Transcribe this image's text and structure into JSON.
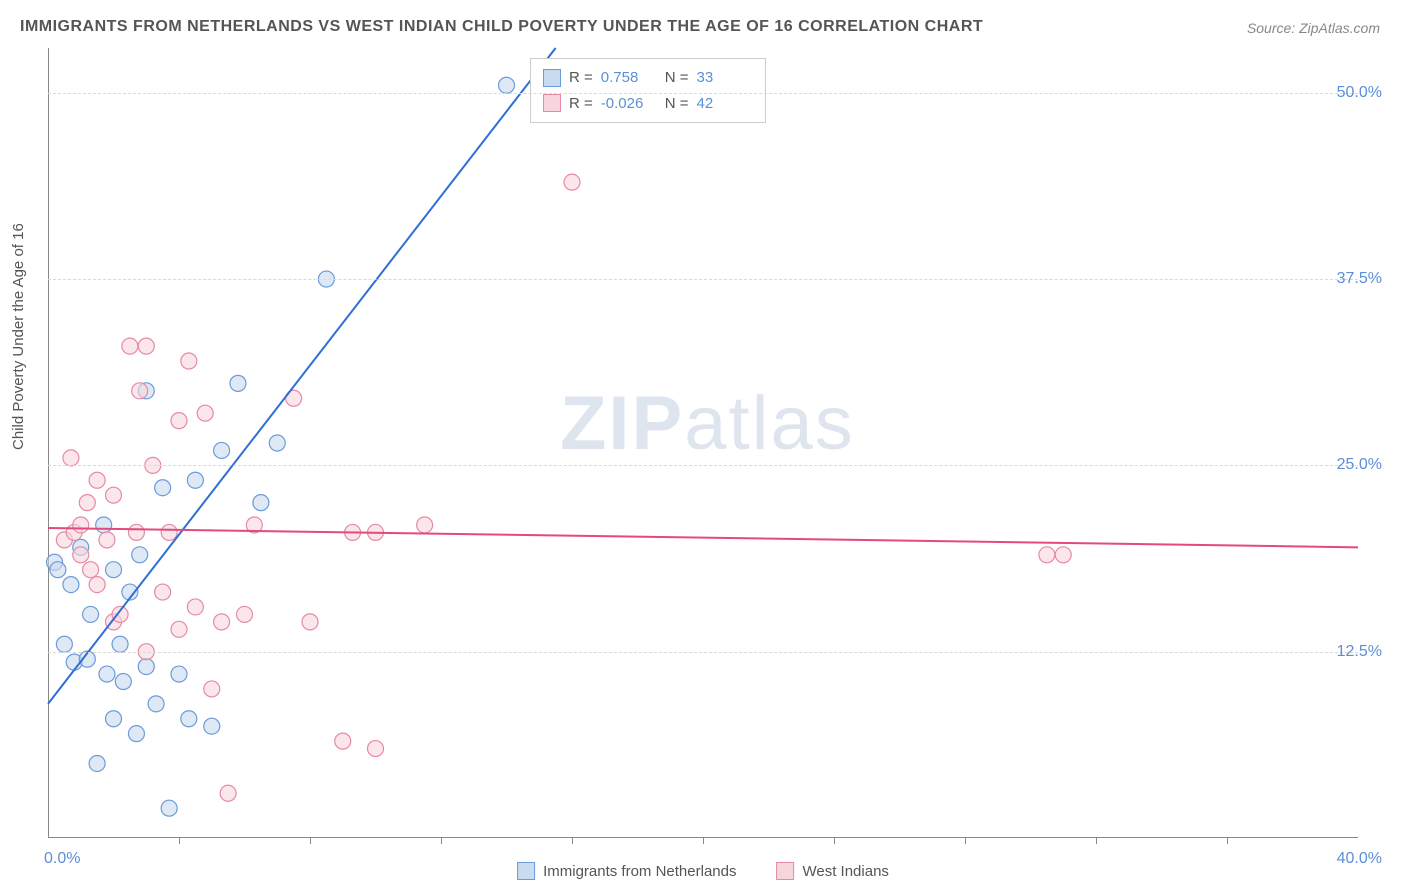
{
  "title": "IMMIGRANTS FROM NETHERLANDS VS WEST INDIAN CHILD POVERTY UNDER THE AGE OF 16 CORRELATION CHART",
  "source": "Source: ZipAtlas.com",
  "y_axis_label": "Child Poverty Under the Age of 16",
  "watermark": {
    "bold": "ZIP",
    "light": "atlas"
  },
  "chart": {
    "type": "scatter",
    "xlim": [
      0,
      40
    ],
    "ylim": [
      0,
      53
    ],
    "x_ticks": [
      0,
      40
    ],
    "x_tick_labels": [
      "0.0%",
      "40.0%"
    ],
    "x_minor_ticks": [
      4,
      8,
      12,
      16,
      20,
      24,
      28,
      32,
      36
    ],
    "y_ticks": [
      12.5,
      25.0,
      37.5,
      50.0
    ],
    "y_tick_labels": [
      "12.5%",
      "25.0%",
      "37.5%",
      "50.0%"
    ],
    "grid_color": "#d8d8d8",
    "background_color": "#ffffff",
    "axis_color": "#888888",
    "tick_label_color": "#5b8fd6",
    "marker_radius": 8,
    "marker_stroke_width": 1.2,
    "line_width": 2,
    "series": [
      {
        "name": "Immigrants from Netherlands",
        "fill": "#c9dbf0",
        "stroke": "#6b9bd8",
        "line_color": "#2d6fd4",
        "R": "0.758",
        "N": "33",
        "trend": {
          "x1": 0,
          "y1": 9.0,
          "x2": 15.5,
          "y2": 53.0
        },
        "points": [
          [
            0.2,
            18.5
          ],
          [
            0.5,
            13.0
          ],
          [
            0.7,
            17.0
          ],
          [
            0.8,
            11.8
          ],
          [
            1.0,
            19.5
          ],
          [
            1.2,
            12.0
          ],
          [
            1.3,
            15.0
          ],
          [
            1.5,
            5.0
          ],
          [
            1.7,
            21.0
          ],
          [
            1.8,
            11.0
          ],
          [
            2.0,
            18.0
          ],
          [
            2.0,
            8.0
          ],
          [
            2.2,
            13.0
          ],
          [
            2.3,
            10.5
          ],
          [
            2.5,
            16.5
          ],
          [
            2.7,
            7.0
          ],
          [
            2.8,
            19.0
          ],
          [
            3.0,
            11.5
          ],
          [
            3.0,
            30.0
          ],
          [
            3.3,
            9.0
          ],
          [
            3.5,
            23.5
          ],
          [
            3.7,
            2.0
          ],
          [
            4.0,
            11.0
          ],
          [
            4.3,
            8.0
          ],
          [
            4.5,
            24.0
          ],
          [
            5.0,
            7.5
          ],
          [
            5.3,
            26.0
          ],
          [
            5.8,
            30.5
          ],
          [
            6.5,
            22.5
          ],
          [
            7.0,
            26.5
          ],
          [
            8.5,
            37.5
          ],
          [
            14.0,
            50.5
          ],
          [
            0.3,
            18.0
          ]
        ]
      },
      {
        "name": "West Indians",
        "fill": "#f7d5dd",
        "stroke": "#e68aa3",
        "line_color": "#e24a7a",
        "R": "-0.026",
        "N": "42",
        "trend": {
          "x1": 0,
          "y1": 20.8,
          "x2": 40,
          "y2": 19.5
        },
        "points": [
          [
            0.5,
            20.0
          ],
          [
            0.7,
            25.5
          ],
          [
            0.8,
            20.5
          ],
          [
            1.0,
            21.0
          ],
          [
            1.0,
            19.0
          ],
          [
            1.2,
            22.5
          ],
          [
            1.3,
            18.0
          ],
          [
            1.5,
            24.0
          ],
          [
            1.5,
            17.0
          ],
          [
            1.8,
            20.0
          ],
          [
            2.0,
            23.0
          ],
          [
            2.0,
            14.5
          ],
          [
            2.2,
            15.0
          ],
          [
            2.5,
            33.0
          ],
          [
            2.7,
            20.5
          ],
          [
            2.8,
            30.0
          ],
          [
            3.0,
            12.5
          ],
          [
            3.0,
            33.0
          ],
          [
            3.5,
            16.5
          ],
          [
            3.7,
            20.5
          ],
          [
            4.0,
            28.0
          ],
          [
            4.0,
            14.0
          ],
          [
            4.3,
            32.0
          ],
          [
            4.5,
            15.5
          ],
          [
            4.8,
            28.5
          ],
          [
            5.0,
            10.0
          ],
          [
            5.3,
            14.5
          ],
          [
            5.5,
            3.0
          ],
          [
            6.0,
            15.0
          ],
          [
            6.3,
            21.0
          ],
          [
            7.5,
            29.5
          ],
          [
            8.0,
            14.5
          ],
          [
            9.0,
            6.5
          ],
          [
            9.3,
            20.5
          ],
          [
            10.0,
            6.0
          ],
          [
            10.0,
            20.5
          ],
          [
            11.5,
            21.0
          ],
          [
            15.0,
            51.0
          ],
          [
            16.0,
            44.0
          ],
          [
            30.5,
            19.0
          ],
          [
            31.0,
            19.0
          ],
          [
            3.2,
            25.0
          ]
        ]
      }
    ]
  },
  "legend": {
    "items": [
      {
        "label": "Immigrants from Netherlands",
        "fill": "#c9dbf0",
        "stroke": "#6b9bd8"
      },
      {
        "label": "West Indians",
        "fill": "#f7d5dd",
        "stroke": "#e68aa3"
      }
    ]
  }
}
